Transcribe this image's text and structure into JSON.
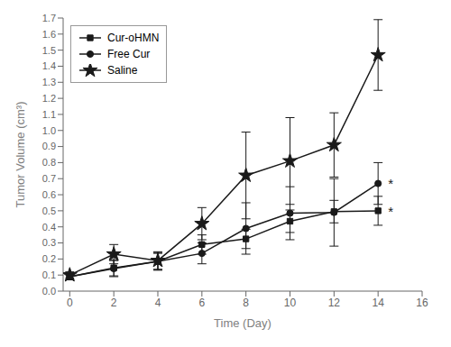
{
  "chart_data": {
    "type": "line",
    "xlabel": "Time (Day)",
    "ylabel": "Tumor Volume (cm³)",
    "x": [
      0,
      2,
      4,
      6,
      8,
      10,
      12,
      14
    ],
    "series": [
      {
        "name": "Cur-oHMN",
        "color": "#1a1a1a",
        "marker": "square",
        "values": [
          0.09,
          0.145,
          0.185,
          0.29,
          0.325,
          0.435,
          0.495,
          0.5
        ],
        "error": [
          0.02,
          0.05,
          0.05,
          0.06,
          0.06,
          0.07,
          0.07,
          0.09
        ]
      },
      {
        "name": "Free Cur",
        "color": "#1a1a1a",
        "marker": "circle",
        "values": [
          0.09,
          0.14,
          0.185,
          0.235,
          0.39,
          0.485,
          0.49,
          0.67
        ],
        "error": [
          0.02,
          0.05,
          0.055,
          0.065,
          0.16,
          0.165,
          0.21,
          0.13
        ]
      },
      {
        "name": "Saline",
        "color": "#1a1a1a",
        "marker": "star",
        "values": [
          0.1,
          0.23,
          0.19,
          0.42,
          0.72,
          0.81,
          0.91,
          1.47
        ],
        "error": [
          0.02,
          0.06,
          0.055,
          0.1,
          0.27,
          0.27,
          0.2,
          0.22
        ]
      }
    ],
    "xlim": [
      -0.3,
      16
    ],
    "xticks": [
      0,
      2,
      4,
      6,
      8,
      10,
      12,
      14,
      16
    ],
    "ylim": [
      0.0,
      1.7
    ],
    "yticks": [
      {
        "value": 0,
        "label": "0.0"
      },
      0.1,
      0.2,
      0.3,
      0.4,
      0.5,
      0.6,
      0.7,
      0.8,
      0.9,
      {
        "value": 1,
        "label": "1.0"
      },
      1.1,
      1.2,
      1.3,
      1.4,
      1.5,
      1.6,
      1.7
    ],
    "annotations": [
      {
        "text": "*",
        "x": 14.45,
        "y": 0.668
      },
      {
        "text": "*",
        "x": 14.45,
        "y": 0.498
      }
    ],
    "legend": "upper left",
    "grid": false
  }
}
